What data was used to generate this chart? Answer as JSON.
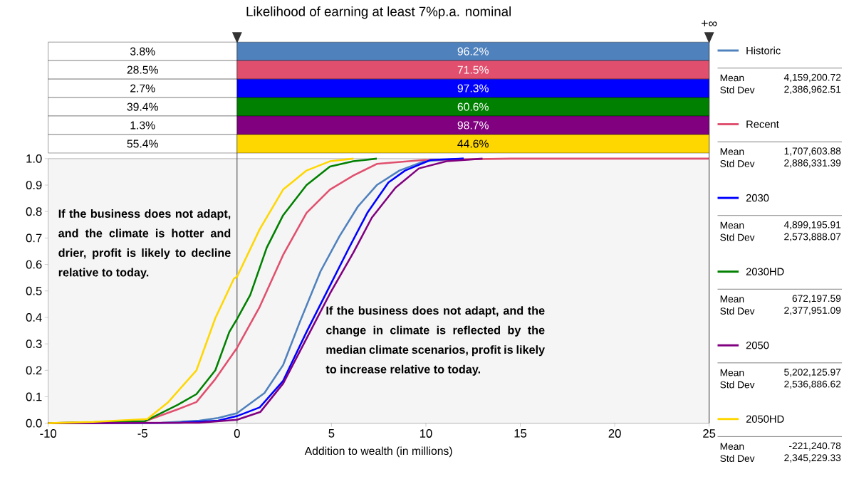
{
  "chart_data": {
    "type": "line",
    "title": "Likelihood of earning at least 7%p.a. nominal",
    "xlabel": "Addition to wealth (in millions)",
    "xlim": [
      -10,
      25
    ],
    "ylim": [
      0,
      1
    ],
    "xticks": [
      -10,
      -5,
      0,
      5,
      10,
      15,
      20,
      25
    ],
    "yticks": [
      {
        "value": 0,
        "label": "0.0"
      },
      {
        "value": 0.1,
        "label": "0.1"
      },
      {
        "value": 0.2,
        "label": "0.2"
      },
      {
        "value": 0.3,
        "label": "0.3"
      },
      {
        "value": 0.4,
        "label": "0.4"
      },
      {
        "value": 0.5,
        "label": "0.5"
      },
      {
        "value": 0.6,
        "label": "0.6"
      },
      {
        "value": 0.7,
        "label": "0.7"
      },
      {
        "value": 0.8,
        "label": "0.8"
      },
      {
        "value": 0.9,
        "label": "0.9"
      },
      {
        "value": 1,
        "label": "1.0"
      }
    ],
    "legend": "right",
    "grid": false,
    "ref_lines": [
      {
        "axis": "x",
        "value": 0,
        "label": null
      },
      {
        "axis": "x",
        "value": 25,
        "label": "+∞"
      }
    ],
    "series": [
      {
        "name": "Historic",
        "color": "#4f81bd",
        "x": [
          -10,
          -4,
          -2,
          -1,
          0,
          1.45,
          2.44,
          3.31,
          4.42,
          5.42,
          6.41,
          7.4,
          8.6,
          9.9,
          12
        ],
        "values": [
          0,
          0.002,
          0.01,
          0.02,
          0.038,
          0.114,
          0.22,
          0.38,
          0.574,
          0.706,
          0.82,
          0.9,
          0.955,
          0.99,
          1
        ]
      },
      {
        "name": "Recent",
        "color": "#e0506e",
        "x": [
          -10,
          -4.87,
          -3.13,
          -2.15,
          -1.15,
          0,
          1.2,
          2.44,
          3.68,
          4.92,
          6.16,
          7.4,
          9.9,
          14.5,
          25
        ],
        "values": [
          0,
          0.008,
          0.053,
          0.08,
          0.167,
          0.285,
          0.44,
          0.636,
          0.795,
          0.883,
          0.936,
          0.98,
          0.995,
          1,
          1
        ]
      },
      {
        "name": "2030",
        "color": "#0000ff",
        "x": [
          -10,
          -3,
          -1,
          0,
          1.2,
          2.44,
          3.68,
          4.92,
          5.91,
          6.9,
          8.02,
          8.9,
          10.25,
          12
        ],
        "values": [
          0,
          0.002,
          0.01,
          0.027,
          0.06,
          0.16,
          0.345,
          0.52,
          0.66,
          0.795,
          0.91,
          0.955,
          0.995,
          1
        ]
      },
      {
        "name": "2030HD",
        "color": "#008000",
        "x": [
          -10,
          -4.87,
          -3.13,
          -2.15,
          -1.15,
          -0.41,
          0,
          0.7,
          1.57,
          2.44,
          3.68,
          4.92,
          6.16,
          7.4
        ],
        "values": [
          0,
          0.008,
          0.07,
          0.11,
          0.2,
          0.345,
          0.394,
          0.485,
          0.663,
          0.786,
          0.9,
          0.97,
          0.99,
          1
        ]
      },
      {
        "name": "2050",
        "color": "#800080",
        "x": [
          -10,
          -2,
          0,
          1.24,
          2.44,
          3.68,
          4.92,
          6.16,
          7.14,
          8.39,
          9.63,
          11.1,
          13
        ],
        "values": [
          0,
          0.002,
          0.013,
          0.043,
          0.15,
          0.32,
          0.49,
          0.645,
          0.777,
          0.89,
          0.963,
          0.99,
          1
        ]
      },
      {
        "name": "2050HD",
        "color": "#ffd700",
        "x": [
          -10,
          -7.6,
          -4.75,
          -3.64,
          -2.15,
          -1.15,
          -0.16,
          0,
          1.2,
          2.44,
          3.68,
          4.92,
          6.16
        ],
        "values": [
          0,
          0.005,
          0.016,
          0.08,
          0.2,
          0.397,
          0.547,
          0.554,
          0.733,
          0.883,
          0.955,
          0.99,
          1
        ]
      }
    ],
    "annotations": [
      "3.8%",
      "96.2%",
      "28.5%",
      "71.5%",
      "2.7%",
      "97.3%",
      "39.4%",
      "60.6%",
      "1.3%",
      "98.7%",
      "55.4%",
      "44.6%",
      "If the business does not adapt, and the climate is hotter and drier, profit is likely to decline relative to today.",
      "If the business does not adapt, and the change in climate is reflected by the median climate scenarios, profit is likely to increase relative to today.",
      "Mean",
      "4,159,200.72",
      "Std Dev",
      "2,386,962.51",
      "Mean",
      "1,707,603.88",
      "Std Dev",
      "2,886,331.39",
      "Mean",
      "4,899,195.91",
      "Std Dev",
      "2,573,888.07",
      "Mean",
      "672,197.59",
      "Std Dev",
      "2,377,951.09",
      "Mean",
      "5,202,125.97",
      "Std Dev",
      "2,536,886.62",
      "Mean",
      "-221,240.78",
      "Std Dev",
      "2,345,229.33"
    ]
  }
}
